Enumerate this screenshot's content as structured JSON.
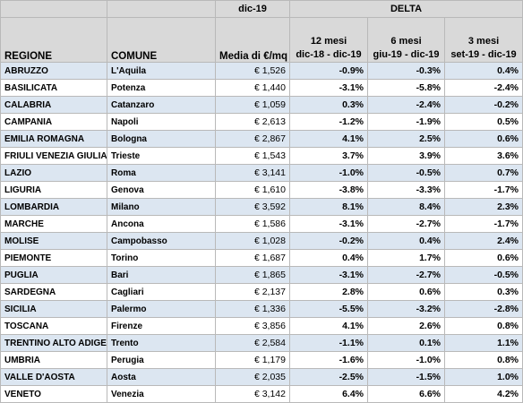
{
  "header": {
    "period_label": "dic-19",
    "delta_label": "DELTA",
    "col_region": "REGIONE",
    "col_comune": "COMUNE",
    "col_media": "Media di €/mq",
    "col_12m_title": "12 mesi",
    "col_12m_range": "dic-18 - dic-19",
    "col_6m_title": "6 mesi",
    "col_6m_range": "giu-19 - dic-19",
    "col_3m_title": "3 mesi",
    "col_3m_range": "set-19 - dic-19"
  },
  "rows": [
    {
      "regione": "ABRUZZO",
      "comune": "L'Aquila",
      "media": "€ 1,526",
      "d12": "-0.9%",
      "d6": "-0.3%",
      "d3": "0.4%"
    },
    {
      "regione": "BASILICATA",
      "comune": "Potenza",
      "media": "€ 1,440",
      "d12": "-3.1%",
      "d6": "-5.8%",
      "d3": "-2.4%"
    },
    {
      "regione": "CALABRIA",
      "comune": "Catanzaro",
      "media": "€ 1,059",
      "d12": "0.3%",
      "d6": "-2.4%",
      "d3": "-0.2%"
    },
    {
      "regione": "CAMPANIA",
      "comune": "Napoli",
      "media": "€ 2,613",
      "d12": "-1.2%",
      "d6": "-1.9%",
      "d3": "0.5%"
    },
    {
      "regione": "EMILIA ROMAGNA",
      "comune": "Bologna",
      "media": "€ 2,867",
      "d12": "4.1%",
      "d6": "2.5%",
      "d3": "0.6%"
    },
    {
      "regione": "FRIULI VENEZIA GIULIA",
      "comune": "Trieste",
      "media": "€ 1,543",
      "d12": "3.7%",
      "d6": "3.9%",
      "d3": "3.6%"
    },
    {
      "regione": "LAZIO",
      "comune": "Roma",
      "media": "€ 3,141",
      "d12": "-1.0%",
      "d6": "-0.5%",
      "d3": "0.7%"
    },
    {
      "regione": "LIGURIA",
      "comune": "Genova",
      "media": "€ 1,610",
      "d12": "-3.8%",
      "d6": "-3.3%",
      "d3": "-1.7%"
    },
    {
      "regione": "LOMBARDIA",
      "comune": "Milano",
      "media": "€ 3,592",
      "d12": "8.1%",
      "d6": "8.4%",
      "d3": "2.3%"
    },
    {
      "regione": "MARCHE",
      "comune": "Ancona",
      "media": "€ 1,586",
      "d12": "-3.1%",
      "d6": "-2.7%",
      "d3": "-1.7%"
    },
    {
      "regione": "MOLISE",
      "comune": "Campobasso",
      "media": "€ 1,028",
      "d12": "-0.2%",
      "d6": "0.4%",
      "d3": "2.4%"
    },
    {
      "regione": "PIEMONTE",
      "comune": "Torino",
      "media": "€ 1,687",
      "d12": "0.4%",
      "d6": "1.7%",
      "d3": "0.6%"
    },
    {
      "regione": "PUGLIA",
      "comune": "Bari",
      "media": "€ 1,865",
      "d12": "-3.1%",
      "d6": "-2.7%",
      "d3": "-0.5%"
    },
    {
      "regione": "SARDEGNA",
      "comune": "Cagliari",
      "media": "€ 2,137",
      "d12": "2.8%",
      "d6": "0.6%",
      "d3": "0.3%"
    },
    {
      "regione": "SICILIA",
      "comune": "Palermo",
      "media": "€ 1,336",
      "d12": "-5.5%",
      "d6": "-3.2%",
      "d3": "-2.8%"
    },
    {
      "regione": "TOSCANA",
      "comune": "Firenze",
      "media": "€ 3,856",
      "d12": "4.1%",
      "d6": "2.6%",
      "d3": "0.8%"
    },
    {
      "regione": "TRENTINO ALTO ADIGE",
      "comune": "Trento",
      "media": "€ 2,584",
      "d12": "-1.1%",
      "d6": "0.1%",
      "d3": "1.1%"
    },
    {
      "regione": "UMBRIA",
      "comune": "Perugia",
      "media": "€ 1,179",
      "d12": "-1.6%",
      "d6": "-1.0%",
      "d3": "0.8%"
    },
    {
      "regione": "VALLE D'AOSTA",
      "comune": "Aosta",
      "media": "€ 2,035",
      "d12": "-2.5%",
      "d6": "-1.5%",
      "d3": "1.0%"
    },
    {
      "regione": "VENETO",
      "comune": "Venezia",
      "media": "€ 3,142",
      "d12": "6.4%",
      "d6": "6.6%",
      "d3": "4.2%"
    }
  ],
  "colors": {
    "header_bg": "#d9d9d9",
    "band_bg": "#dce6f1",
    "grid": "#b9b9b9"
  }
}
